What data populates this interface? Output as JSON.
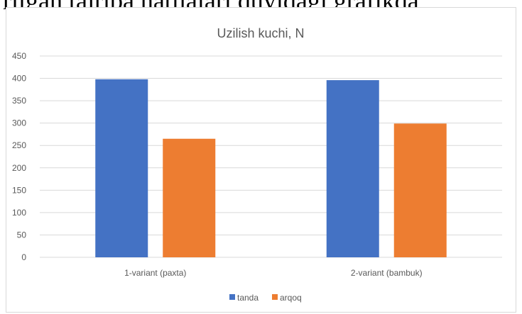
{
  "page_text": {
    "cropped_header": "rilgan tajriba natijalari quyidagi grafikda"
  },
  "chart_data": {
    "type": "bar",
    "title": "Uzilish kuchi, N",
    "xlabel": "",
    "ylabel": "",
    "categories": [
      "1-variant (paxta)",
      "2-variant (bambuk)"
    ],
    "series": [
      {
        "name": "tanda",
        "color": "#4472C4",
        "values": [
          398,
          396
        ]
      },
      {
        "name": "arqoq",
        "color": "#ED7D31",
        "values": [
          265,
          299
        ]
      }
    ],
    "ylim": [
      0,
      450
    ],
    "yticks": [
      0,
      50,
      100,
      150,
      200,
      250,
      300,
      350,
      400,
      450
    ],
    "grid": true,
    "legend_position": "bottom"
  }
}
